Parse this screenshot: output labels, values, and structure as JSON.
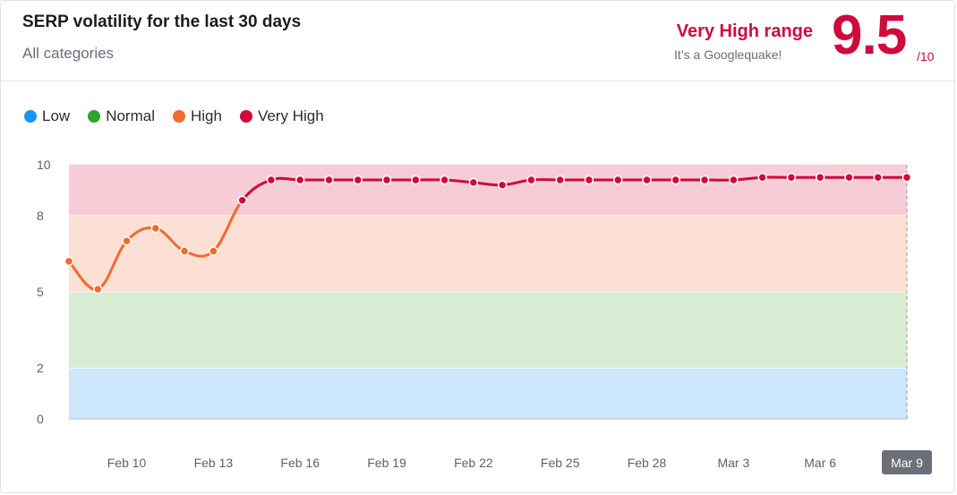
{
  "header": {
    "title": "SERP volatility for the last 30 days",
    "subtitle": "All categories",
    "range_label": "Very High range",
    "range_note": "It’s a Googlequake!",
    "score": "9.5",
    "score_max": "/10"
  },
  "legend": [
    {
      "label": "Low",
      "color": "#1a94f0"
    },
    {
      "label": "Normal",
      "color": "#2ea52e"
    },
    {
      "label": "High",
      "color": "#f26a2e"
    },
    {
      "label": "Very High",
      "color": "#cf0a3c"
    }
  ],
  "chart_data": {
    "type": "line",
    "ylim": [
      0,
      10
    ],
    "yticks": [
      "0",
      "2",
      "5",
      "8",
      "10"
    ],
    "xtick_labels": [
      "Feb 10",
      "Feb 13",
      "Feb 16",
      "Feb 19",
      "Feb 22",
      "Feb 25",
      "Feb 28",
      "Mar 3",
      "Mar 6",
      "Mar 9"
    ],
    "highlighted_x_label": "Mar 9",
    "bands": [
      {
        "name": "Low",
        "from": 0,
        "to": 2,
        "fill": "#cce6fc"
      },
      {
        "name": "Normal",
        "from": 2,
        "to": 5,
        "fill": "#d9ecd4"
      },
      {
        "name": "High",
        "from": 5,
        "to": 8,
        "fill": "#fde0d4"
      },
      {
        "name": "Very High",
        "from": 8,
        "to": 10,
        "fill": "#f6cdd6"
      }
    ],
    "series": [
      {
        "x": [
          "Feb 8",
          "Feb 9",
          "Feb 10",
          "Feb 11",
          "Feb 12",
          "Feb 13",
          "Feb 14",
          "Feb 15",
          "Feb 16",
          "Feb 17",
          "Feb 18",
          "Feb 19",
          "Feb 20",
          "Feb 21",
          "Feb 22",
          "Feb 23",
          "Feb 24",
          "Feb 25",
          "Feb 26",
          "Feb 27",
          "Feb 28",
          "Mar 1",
          "Mar 2",
          "Mar 3",
          "Mar 4",
          "Mar 5",
          "Mar 6",
          "Mar 7",
          "Mar 8",
          "Mar 9"
        ],
        "values": [
          6.2,
          5.1,
          7.0,
          7.5,
          6.6,
          6.6,
          8.6,
          9.4,
          9.4,
          9.4,
          9.4,
          9.4,
          9.4,
          9.4,
          9.3,
          9.2,
          9.4,
          9.4,
          9.4,
          9.4,
          9.4,
          9.4,
          9.4,
          9.4,
          9.5,
          9.5,
          9.5,
          9.5,
          9.5,
          9.5
        ]
      }
    ]
  }
}
